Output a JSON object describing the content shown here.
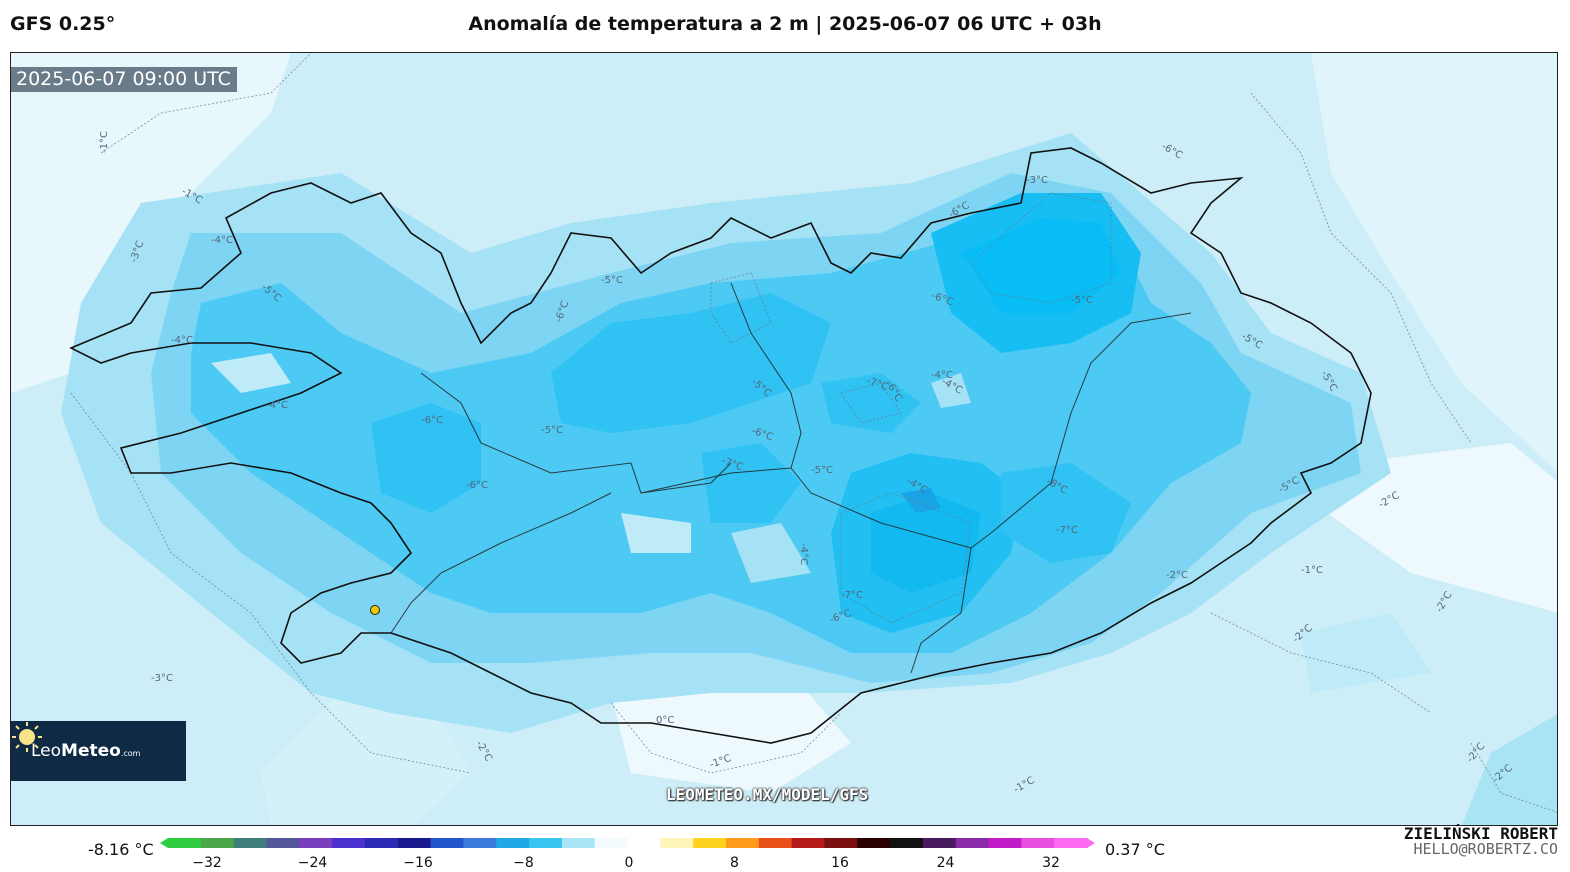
{
  "header": {
    "model": "GFS 0.25°",
    "title": "Anomalía de temperatura a 2 m | 2025-06-07 06 UTC + 03h"
  },
  "map": {
    "valid_time": "2025-06-07 09:00 UTC",
    "watermark": "LEOMETEO.MX/MODEL/GFS",
    "contour_labels": [
      "-1°C",
      "-1°C",
      "-4°C",
      "-5°C",
      "-4°C",
      "-3°C",
      "-4°C",
      "-6°C",
      "-5°C",
      "-6°C",
      "-5°C",
      "-6°C",
      "-5°C",
      "-6°C",
      "-7°C",
      "-5°C",
      "-7°C",
      "-6°C",
      "-4°C",
      "-4°C",
      "-4°C",
      "-4°C",
      "-8°C",
      "-7°C",
      "-7°C",
      "-6°C",
      "-5°C",
      "-6°C",
      "-5°C",
      "-6°C",
      "-3°C",
      "-5°C",
      "-5°C",
      "-2°C",
      "-1°C",
      "-2°C",
      "-2°C",
      "-2°C",
      "-2°C",
      "-3°C",
      "-1°C",
      "-1°C",
      "0°C",
      "-2°C",
      "-2°C",
      "-6°C"
    ],
    "location_marker": "yellow-dot"
  },
  "logo": {
    "brand_light": "Leo",
    "brand_bold": "Meteo",
    "brand_suffix": ".com"
  },
  "colorbar": {
    "min_label": "-8.16 °C",
    "max_label": "0.37 °C",
    "ticks": [
      "−32",
      "−24",
      "−16",
      "−8",
      "0",
      "8",
      "16",
      "24",
      "32"
    ],
    "colors": [
      "#2ecc40",
      "#4aa84a",
      "#3f7f7a",
      "#555599",
      "#7a3fbf",
      "#4b2fcf",
      "#2a2ab5",
      "#1a1a8f",
      "#2255cc",
      "#3a7bdc",
      "#1fa7e6",
      "#37c6f2",
      "#a8e6f7",
      "#f4fbfe",
      "#ffffff",
      "#fff5b8",
      "#ffd21f",
      "#ff9a1a",
      "#e8521a",
      "#b51a1a",
      "#7a0f0f",
      "#2b0000",
      "#111111",
      "#4a1a5e",
      "#8a2aa8",
      "#c21bc8",
      "#e84fe0",
      "#ff6bf0"
    ]
  },
  "author": {
    "name": "ZIELIŃSKI ROBERT",
    "email": "HELLO@ROBERTZ.CO"
  }
}
